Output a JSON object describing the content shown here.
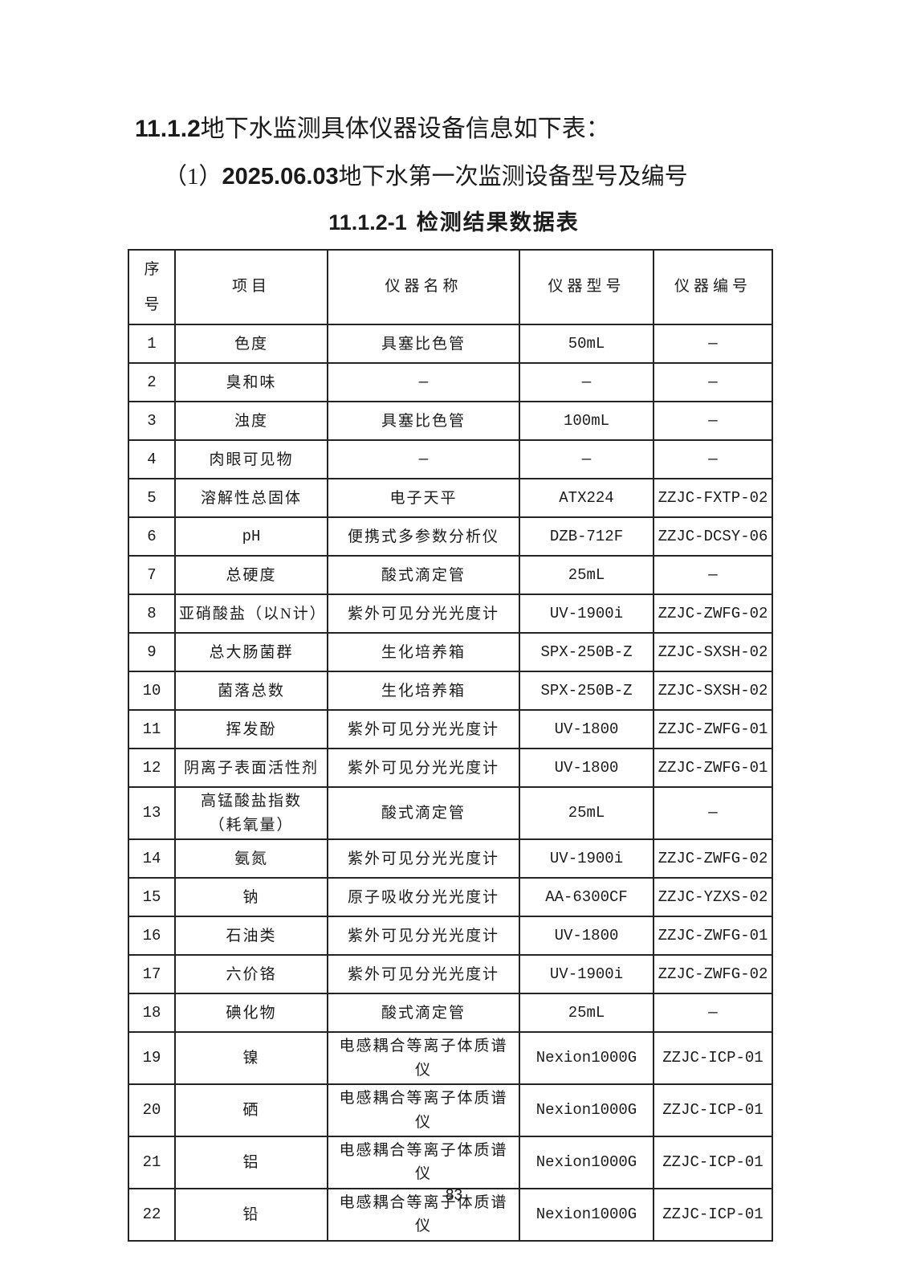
{
  "colors": {
    "background": "#ffffff",
    "text": "#1b1b1b",
    "table_border": "#242424"
  },
  "heading": {
    "number": "11.1.2",
    "text": "地下水监测具体仪器设备信息如下表："
  },
  "subtitle": {
    "prefix": "（1）",
    "number": "2025.06.03",
    "text": "地下水第一次监测设备型号及编号"
  },
  "table_title": {
    "number": "11.1.2-1",
    "text": "检测结果数据表"
  },
  "table": {
    "headers": [
      "序\n号",
      "项目",
      "仪器名称",
      "仪器型号",
      "仪器编号"
    ],
    "rows": [
      [
        "1",
        "色度",
        "具塞比色管",
        "50mL",
        "—"
      ],
      [
        "2",
        "臭和味",
        "—",
        "—",
        "—"
      ],
      [
        "3",
        "浊度",
        "具塞比色管",
        "100mL",
        "—"
      ],
      [
        "4",
        "肉眼可见物",
        "—",
        "—",
        "—"
      ],
      [
        "5",
        "溶解性总固体",
        "电子天平",
        "ATX224",
        "ZZJC-FXTP-02"
      ],
      [
        "6",
        "pH",
        "便携式多参数分析仪",
        "DZB-712F",
        "ZZJC-DCSY-06"
      ],
      [
        "7",
        "总硬度",
        "酸式滴定管",
        "25mL",
        "—"
      ],
      [
        "8",
        "亚硝酸盐（以N计）",
        "紫外可见分光光度计",
        "UV-1900i",
        "ZZJC-ZWFG-02"
      ],
      [
        "9",
        "总大肠菌群",
        "生化培养箱",
        "SPX-250B-Z",
        "ZZJC-SXSH-02"
      ],
      [
        "10",
        "菌落总数",
        "生化培养箱",
        "SPX-250B-Z",
        "ZZJC-SXSH-02"
      ],
      [
        "11",
        "挥发酚",
        "紫外可见分光光度计",
        "UV-1800",
        "ZZJC-ZWFG-01"
      ],
      [
        "12",
        "阴离子表面活性剂",
        "紫外可见分光光度计",
        "UV-1800",
        "ZZJC-ZWFG-01"
      ],
      [
        "13",
        "高锰酸盐指数\n（耗氧量）",
        "酸式滴定管",
        "25mL",
        "—"
      ],
      [
        "14",
        "氨氮",
        "紫外可见分光光度计",
        "UV-1900i",
        "ZZJC-ZWFG-02"
      ],
      [
        "15",
        "钠",
        "原子吸收分光光度计",
        "AA-6300CF",
        "ZZJC-YZXS-02"
      ],
      [
        "16",
        "石油类",
        "紫外可见分光光度计",
        "UV-1800",
        "ZZJC-ZWFG-01"
      ],
      [
        "17",
        "六价铬",
        "紫外可见分光光度计",
        "UV-1900i",
        "ZZJC-ZWFG-02"
      ],
      [
        "18",
        "碘化物",
        "酸式滴定管",
        "25mL",
        "—"
      ],
      [
        "19",
        "镍",
        "电感耦合等离子体质谱仪",
        "Nexion1000G",
        "ZZJC-ICP-01"
      ],
      [
        "20",
        "硒",
        "电感耦合等离子体质谱仪",
        "Nexion1000G",
        "ZZJC-ICP-01"
      ],
      [
        "21",
        "铝",
        "电感耦合等离子体质谱仪",
        "Nexion1000G",
        "ZZJC-ICP-01"
      ],
      [
        "22",
        "铅",
        "电感耦合等离子体质谱仪",
        "Nexion1000G",
        "ZZJC-ICP-01"
      ]
    ]
  },
  "footer": {
    "page_number": "83"
  }
}
